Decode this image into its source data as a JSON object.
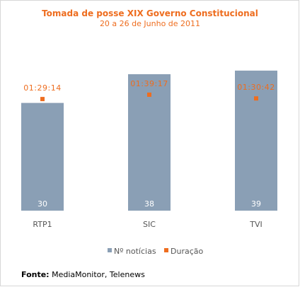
{
  "chart_data": {
    "type": "bar",
    "title": "Tomada de posse XIX Governo Constitucional",
    "subtitle": "20 a 26 de Junho de 2011",
    "categories": [
      "RTP1",
      "SIC",
      "TVI"
    ],
    "series": [
      {
        "name": "Nº notícias",
        "type": "bar",
        "values": [
          30,
          38,
          39
        ],
        "color": "#8a9fb5"
      },
      {
        "name": "Duração",
        "type": "marker",
        "values": [
          "01:29:14",
          "01:39:17",
          "01:30:42"
        ],
        "color": "#ee6d1f"
      }
    ],
    "legend_position": "bottom"
  },
  "source": {
    "label": "Fonte:",
    "text": " MediaMonitor, Telenews"
  }
}
